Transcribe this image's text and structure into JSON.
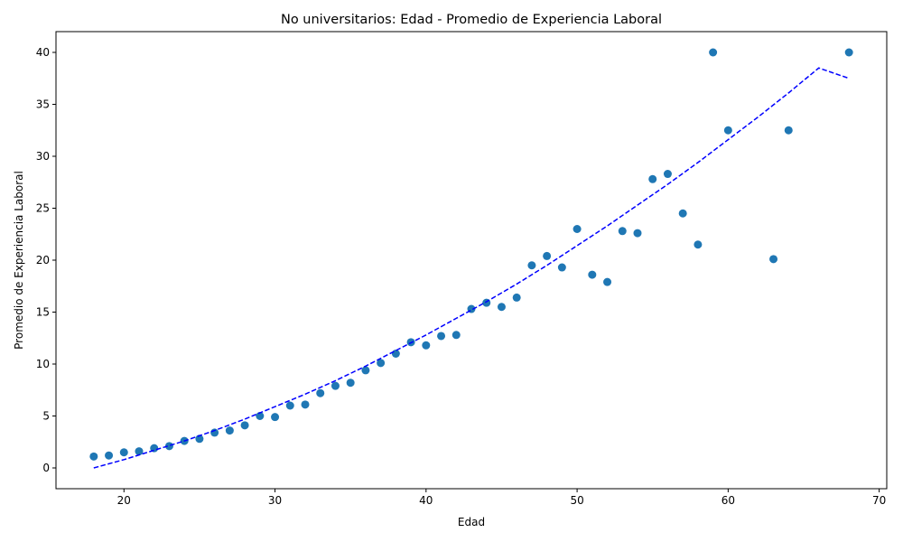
{
  "chart_data": {
    "type": "scatter",
    "title": "No universitarios: Edad - Promedio de Experiencia Laboral",
    "xlabel": "Edad",
    "ylabel": "Promedio de Experiencia Laboral",
    "xlim": [
      15.5,
      70.5
    ],
    "ylim": [
      -2,
      42
    ],
    "xticks": [
      20,
      30,
      40,
      50,
      60,
      70
    ],
    "yticks": [
      0,
      5,
      10,
      15,
      20,
      25,
      30,
      35,
      40
    ],
    "grid": false,
    "point_color": "#1f77b4",
    "trend_color": "#0000ff",
    "series": [
      {
        "x": [
          18,
          19,
          20,
          21,
          22,
          23,
          24,
          25,
          26,
          27,
          28,
          29,
          30,
          31,
          32,
          33,
          34,
          35,
          36,
          37,
          38,
          39,
          40,
          41,
          42,
          43,
          44,
          45,
          46,
          47,
          48,
          49,
          50,
          51,
          52,
          53,
          54,
          55,
          56,
          57,
          58,
          59,
          60,
          63,
          64,
          68
        ],
        "y": [
          1.1,
          1.2,
          1.5,
          1.6,
          1.9,
          2.1,
          2.6,
          2.8,
          3.4,
          3.6,
          4.1,
          5.0,
          4.9,
          6.0,
          6.1,
          7.2,
          7.9,
          8.2,
          9.4,
          10.1,
          11.0,
          12.1,
          11.8,
          12.7,
          12.8,
          15.3,
          15.9,
          15.5,
          16.4,
          19.5,
          20.4,
          19.3,
          23.0,
          18.6,
          17.9,
          22.8,
          22.6,
          27.8,
          28.3,
          24.5,
          21.5,
          40.0,
          32.5,
          20.1,
          32.5,
          40.0
        ]
      }
    ],
    "trend": {
      "style": "dashed",
      "x": [
        18,
        20,
        22,
        24,
        26,
        28,
        30,
        32,
        34,
        36,
        38,
        40,
        42,
        44,
        46,
        48,
        50,
        52,
        54,
        56,
        58,
        60,
        62,
        64,
        66,
        68
      ],
      "y": [
        0.0,
        0.8,
        1.7,
        2.6,
        3.6,
        4.7,
        5.9,
        7.1,
        8.4,
        9.8,
        11.3,
        12.8,
        14.4,
        16.0,
        17.7,
        19.5,
        21.4,
        23.3,
        25.3,
        27.3,
        29.4,
        31.6,
        33.8,
        36.1,
        38.5,
        37.5
      ]
    }
  }
}
